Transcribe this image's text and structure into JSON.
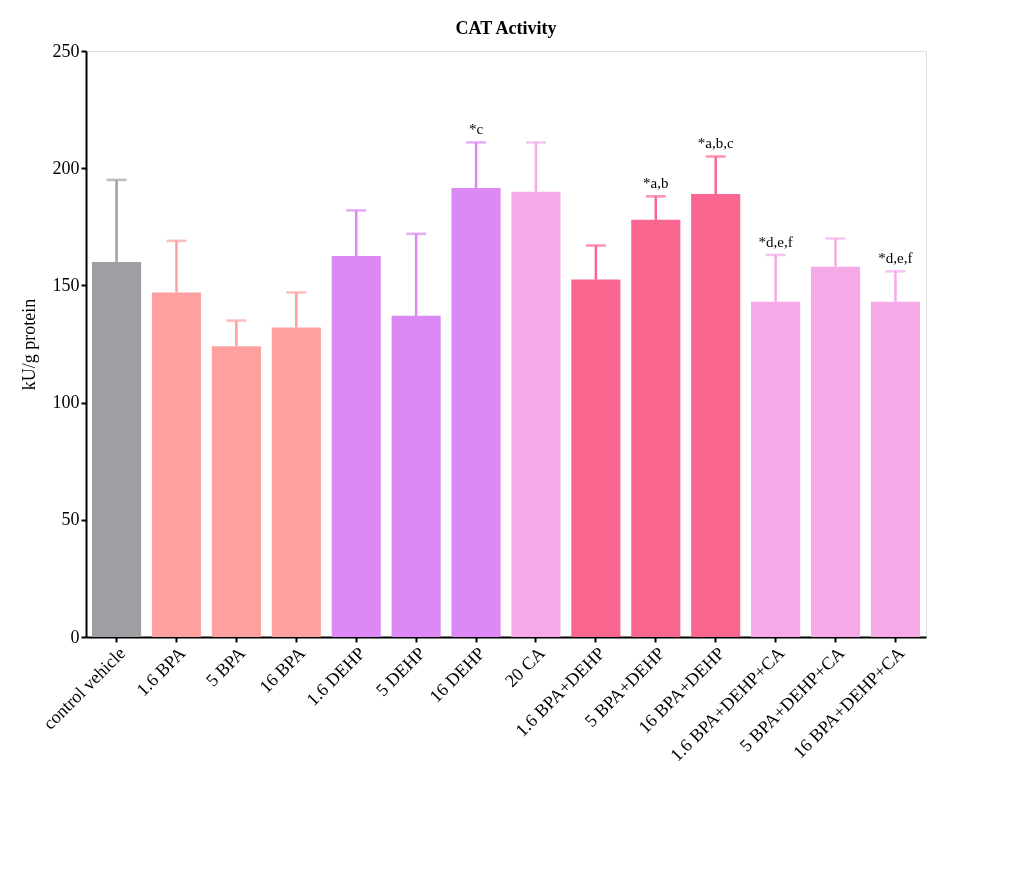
{
  "chart_data": {
    "type": "bar",
    "title": "CAT Activity",
    "ylabel": "kU/g protein",
    "categories": [
      "control vehicle",
      "1.6 BPA",
      "5 BPA",
      "16 BPA",
      "1.6 DEHP",
      "5 DEHP",
      "16 DEHP",
      "20 CA",
      "1.6 BPA+DEHP",
      "5 BPA+DEHP",
      "16 BPA+DEHP",
      "1.6 BPA+DEHP+CA",
      "5 BPA+DEHP+CA",
      "16 BPA+DEHP+CA"
    ],
    "values": [
      160,
      147,
      124,
      132,
      162.5,
      137,
      191.5,
      190,
      152.5,
      178,
      189,
      143,
      158,
      143
    ],
    "colors": [
      "#a09ea3",
      "#fda09f",
      "#fda09f",
      "#fda09f",
      "#dc88f5",
      "#dc88f5",
      "#dc88f5",
      "#f5a9e6",
      "#f9668f",
      "#f9668f",
      "#f9668f",
      "#f5a9e6",
      "#f5a9e6",
      "#f5a9e6"
    ],
    "errors": [
      [
        160,
        195
      ],
      [
        147,
        169
      ],
      [
        124,
        135
      ],
      [
        132,
        147
      ],
      [
        162.5,
        182
      ],
      [
        137,
        172
      ],
      [
        191.5,
        211
      ],
      [
        190,
        211
      ],
      [
        152.5,
        167
      ],
      [
        178,
        188
      ],
      [
        189,
        205
      ],
      [
        143,
        163
      ],
      [
        158,
        170
      ],
      [
        143,
        156
      ]
    ],
    "ylim": [
      0,
      250
    ],
    "yticks": [
      0,
      50,
      100,
      150,
      200,
      250
    ],
    "grid": false,
    "legend": false,
    "annotations": [
      {
        "text": "*c",
        "x": "16 DEHP",
        "y": 211
      },
      {
        "text": "*a,b",
        "x": "5 BPA+DEHP",
        "y": 188
      },
      {
        "text": "*a,b,c",
        "x": "16 BPA+DEHP",
        "y": 205
      },
      {
        "text": "*d,e,f",
        "x": "1.6 BPA+DEHP+CA",
        "y": 163
      },
      {
        "text": "*d,e,f",
        "x": "16 BPA+DEHP+CA",
        "y": 156
      }
    ]
  }
}
